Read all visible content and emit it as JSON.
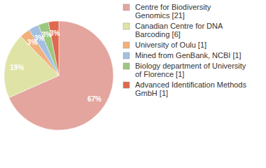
{
  "chart_data": {
    "type": "pie",
    "categories": [
      "Centre for Biodiversity Genomics [21]",
      "Canadian Centre for DNA Barcoding [6]",
      "University of Oulu [1]",
      "Mined from GenBank, NCBI [1]",
      "Biology department of University of Florence [1]",
      "Advanced Identification Methods GmbH [1]"
    ],
    "values": [
      67,
      19,
      3,
      3,
      3,
      3
    ],
    "value_labels": [
      "67%",
      "19%",
      "3%",
      "3%",
      "3%",
      "3%"
    ],
    "colors": [
      "#e3a59d",
      "#dfe4a6",
      "#f2b07c",
      "#a3c0e3",
      "#9dc77f",
      "#e0684e"
    ],
    "data_labels": true,
    "legend": "right"
  }
}
